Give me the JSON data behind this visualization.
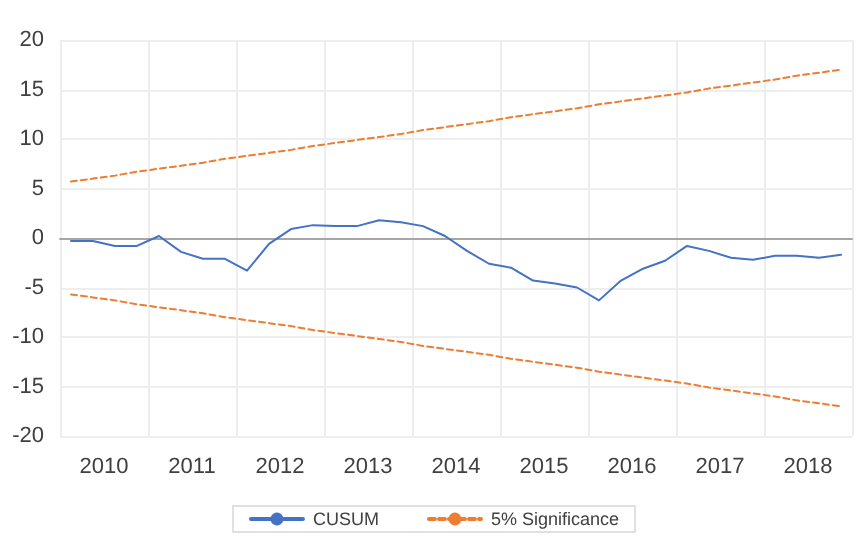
{
  "chart_data": {
    "type": "line",
    "xlim": [
      2010,
      2019
    ],
    "xticks": [
      {
        "value": 2010,
        "label": null
      },
      {
        "value": 2010.5,
        "label": "2010"
      },
      {
        "value": 2011,
        "label": null
      },
      {
        "value": 2011.5,
        "label": "2011"
      },
      {
        "value": 2012,
        "label": null
      },
      {
        "value": 2012.5,
        "label": "2012"
      },
      {
        "value": 2013,
        "label": null
      },
      {
        "value": 2013.5,
        "label": "2013"
      },
      {
        "value": 2014,
        "label": null
      },
      {
        "value": 2014.5,
        "label": "2014"
      },
      {
        "value": 2015,
        "label": null
      },
      {
        "value": 2015.5,
        "label": "2015"
      },
      {
        "value": 2016,
        "label": null
      },
      {
        "value": 2016.5,
        "label": "2016"
      },
      {
        "value": 2017,
        "label": null
      },
      {
        "value": 2017.5,
        "label": "2017"
      },
      {
        "value": 2018,
        "label": null
      },
      {
        "value": 2018.5,
        "label": "2018"
      },
      {
        "value": 2019,
        "label": null
      }
    ],
    "ylim": [
      -20,
      20
    ],
    "yticks": [
      -20,
      -15,
      -10,
      -5,
      0,
      5,
      10,
      15,
      20
    ],
    "x": [
      2010.125,
      2010.375,
      2010.625,
      2010.875,
      2011.125,
      2011.375,
      2011.625,
      2011.875,
      2012.125,
      2012.375,
      2012.625,
      2012.875,
      2013.125,
      2013.375,
      2013.625,
      2013.875,
      2014.125,
      2014.375,
      2014.625,
      2014.875,
      2015.125,
      2015.375,
      2015.625,
      2015.875,
      2016.125,
      2016.375,
      2016.625,
      2016.875,
      2017.125,
      2017.375,
      2017.625,
      2017.875,
      2018.125,
      2018.375,
      2018.625,
      2018.875
    ],
    "series": [
      {
        "name": "CUSUM",
        "color": "#4472c4",
        "line_style": "solid",
        "values": [
          -0.3,
          -0.3,
          -0.8,
          -0.8,
          0.2,
          -1.4,
          -2.1,
          -2.1,
          -3.3,
          -0.6,
          0.9,
          1.3,
          1.2,
          1.2,
          1.8,
          1.6,
          1.2,
          0.2,
          -1.3,
          -2.6,
          -3.0,
          -4.3,
          -4.6,
          -5.0,
          -6.3,
          -4.3,
          -3.1,
          -2.3,
          -0.8,
          -1.3,
          -2.0,
          -2.2,
          -1.8,
          -1.8,
          -2.0,
          -1.7
        ]
      },
      {
        "name": "5% Significance",
        "color": "#ed7d31",
        "line_style": "dashed",
        "values": [
          5.7,
          6.0,
          6.3,
          6.7,
          7.0,
          7.3,
          7.6,
          8.0,
          8.3,
          8.6,
          8.9,
          9.3,
          9.6,
          9.9,
          10.2,
          10.5,
          10.9,
          11.2,
          11.5,
          11.8,
          12.2,
          12.5,
          12.8,
          13.1,
          13.5,
          13.8,
          14.1,
          14.4,
          14.7,
          15.1,
          15.4,
          15.7,
          16.0,
          16.4,
          16.7,
          17.0
        ]
      },
      {
        "color": "#ed7d31",
        "line_style": "dashed",
        "values": [
          -5.7,
          -6.0,
          -6.3,
          -6.7,
          -7.0,
          -7.3,
          -7.6,
          -8.0,
          -8.3,
          -8.6,
          -8.9,
          -9.3,
          -9.6,
          -9.9,
          -10.2,
          -10.5,
          -10.9,
          -11.2,
          -11.5,
          -11.8,
          -12.2,
          -12.5,
          -12.8,
          -13.1,
          -13.5,
          -13.8,
          -14.1,
          -14.4,
          -14.7,
          -15.1,
          -15.4,
          -15.7,
          -16.0,
          -16.4,
          -16.7,
          -17.0
        ]
      }
    ],
    "grid": true,
    "legend": "bottom",
    "marker": "none"
  }
}
